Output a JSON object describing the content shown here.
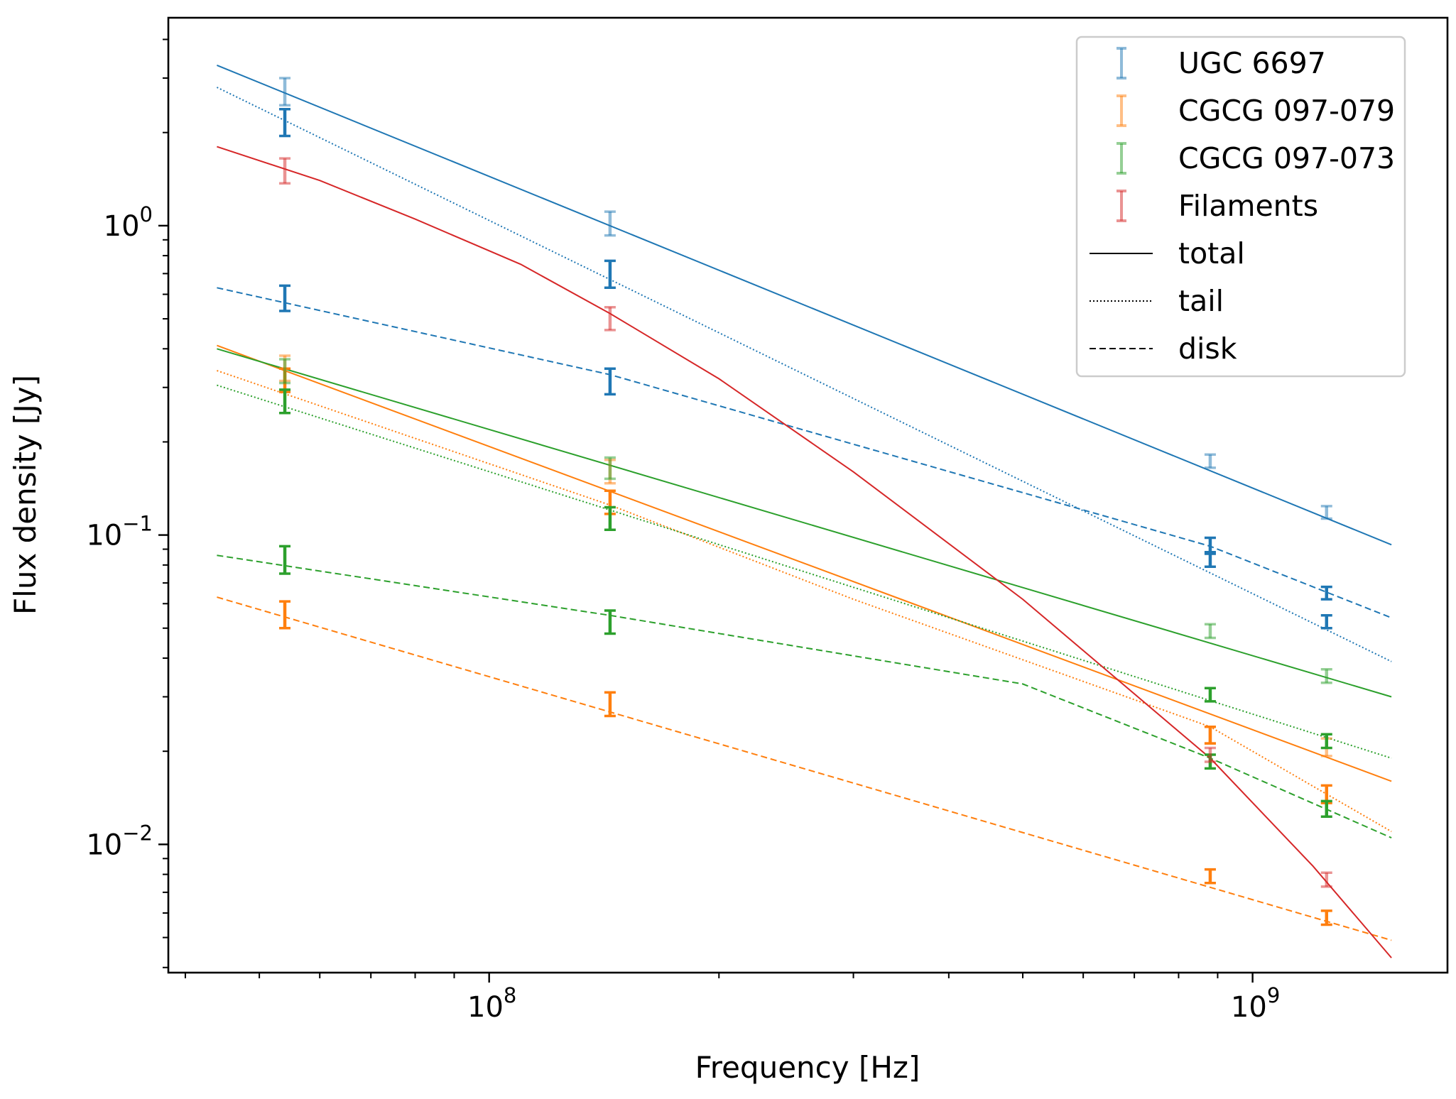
{
  "chart_data": {
    "type": "line",
    "title": "",
    "xlabel": "Frequency [Hz]",
    "ylabel": "Flux density [Jy]",
    "xscale": "log",
    "yscale": "log",
    "xlim": [
      38000000,
      1800000000
    ],
    "ylim": [
      0.00385,
      4.7
    ],
    "x_major_ticks": [
      {
        "value": 100000000,
        "mantissa": "10",
        "exponent": "8"
      },
      {
        "value": 1000000000,
        "mantissa": "10",
        "exponent": "9"
      }
    ],
    "y_major_ticks": [
      {
        "value": 1,
        "mantissa": "10",
        "exponent": "0"
      },
      {
        "value": 0.1,
        "mantissa": "10",
        "exponent": "−1"
      },
      {
        "value": 0.01,
        "mantissa": "10",
        "exponent": "−2"
      }
    ],
    "legend": {
      "position": "upper right",
      "entries": [
        {
          "label": "UGC 6697",
          "kind": "errorbar",
          "color": "#1f77b4"
        },
        {
          "label": "CGCG 097-079",
          "kind": "errorbar",
          "color": "#ff7f0e"
        },
        {
          "label": "CGCG 097-073",
          "kind": "errorbar",
          "color": "#2ca02c"
        },
        {
          "label": "Filaments",
          "kind": "errorbar",
          "color": "#d62728"
        },
        {
          "label": "total",
          "kind": "line",
          "dash": "solid",
          "color": "#000000"
        },
        {
          "label": "tail",
          "kind": "line",
          "dash": "dotted",
          "color": "#000000"
        },
        {
          "label": "disk",
          "kind": "line",
          "dash": "dashed",
          "color": "#000000"
        }
      ]
    },
    "series": [
      {
        "name": "UGC 6697 total",
        "color": "#1f77b4",
        "dash": "solid",
        "x": [
          44000000,
          1520000000
        ],
        "y": [
          3.3,
          0.093
        ]
      },
      {
        "name": "UGC 6697 tail",
        "color": "#1f77b4",
        "dash": "dotted",
        "x": [
          44000000,
          1520000000
        ],
        "y": [
          2.8,
          0.039
        ]
      },
      {
        "name": "UGC 6697 disk",
        "color": "#1f77b4",
        "dash": "dashed",
        "x": [
          44000000,
          144000000,
          880000000,
          1520000000
        ],
        "y": [
          0.63,
          0.33,
          0.092,
          0.054
        ]
      },
      {
        "name": "CGCG 097-079 total",
        "color": "#ff7f0e",
        "dash": "solid",
        "x": [
          44000000,
          1520000000
        ],
        "y": [
          0.41,
          0.016
        ]
      },
      {
        "name": "CGCG 097-079 tail",
        "color": "#ff7f0e",
        "dash": "dotted",
        "x": [
          44000000,
          144000000,
          300000000,
          880000000,
          1520000000
        ],
        "y": [
          0.34,
          0.125,
          0.062,
          0.024,
          0.011
        ]
      },
      {
        "name": "CGCG 097-079 disk",
        "color": "#ff7f0e",
        "dash": "dashed",
        "x": [
          44000000,
          1520000000
        ],
        "y": [
          0.063,
          0.0049
        ]
      },
      {
        "name": "CGCG 097-073 total",
        "color": "#2ca02c",
        "dash": "solid",
        "x": [
          44000000,
          1520000000
        ],
        "y": [
          0.4,
          0.03
        ]
      },
      {
        "name": "CGCG 097-073 tail",
        "color": "#2ca02c",
        "dash": "dotted",
        "x": [
          44000000,
          1520000000
        ],
        "y": [
          0.305,
          0.019
        ]
      },
      {
        "name": "CGCG 097-073 disk",
        "color": "#2ca02c",
        "dash": "dashed",
        "x": [
          44000000,
          144000000,
          500000000,
          880000000,
          1520000000
        ],
        "y": [
          0.086,
          0.055,
          0.033,
          0.019,
          0.0105
        ]
      },
      {
        "name": "Filaments total",
        "color": "#d62728",
        "dash": "solid",
        "x": [
          44000000,
          60000000,
          80000000,
          110000000,
          144000000,
          200000000,
          300000000,
          500000000,
          880000000,
          1200000000,
          1520000000
        ],
        "y": [
          1.8,
          1.4,
          1.05,
          0.75,
          0.52,
          0.32,
          0.16,
          0.062,
          0.019,
          0.0085,
          0.0043
        ]
      }
    ],
    "errorbars": [
      {
        "name": "UGC 6697",
        "color": "#1f77b4",
        "alpha": 0.5,
        "points": [
          {
            "x": 54000000,
            "y": 2.7,
            "lo": 2.45,
            "hi": 3.0
          },
          {
            "x": 144000000,
            "y": 1.02,
            "lo": 0.93,
            "hi": 1.11
          },
          {
            "x": 880000000,
            "y": 0.173,
            "lo": 0.165,
            "hi": 0.182
          },
          {
            "x": 1250000000,
            "y": 0.118,
            "lo": 0.113,
            "hi": 0.124
          }
        ]
      },
      {
        "name": "UGC 6697 tail",
        "color": "#1f77b4",
        "alpha": 1.0,
        "points": [
          {
            "x": 54000000,
            "y": 2.15,
            "lo": 1.95,
            "hi": 2.38
          },
          {
            "x": 144000000,
            "y": 0.7,
            "lo": 0.63,
            "hi": 0.77
          },
          {
            "x": 880000000,
            "y": 0.083,
            "lo": 0.079,
            "hi": 0.087
          },
          {
            "x": 1250000000,
            "y": 0.052,
            "lo": 0.05,
            "hi": 0.055
          }
        ]
      },
      {
        "name": "UGC 6697 disk",
        "color": "#1f77b4",
        "alpha": 1.0,
        "points": [
          {
            "x": 54000000,
            "y": 0.58,
            "lo": 0.53,
            "hi": 0.64
          },
          {
            "x": 144000000,
            "y": 0.31,
            "lo": 0.285,
            "hi": 0.345
          },
          {
            "x": 880000000,
            "y": 0.093,
            "lo": 0.088,
            "hi": 0.098
          },
          {
            "x": 1250000000,
            "y": 0.065,
            "lo": 0.062,
            "hi": 0.068
          }
        ]
      },
      {
        "name": "CGCG 097-079",
        "color": "#ff7f0e",
        "alpha": 0.5,
        "points": [
          {
            "x": 54000000,
            "y": 0.345,
            "lo": 0.315,
            "hi": 0.38
          },
          {
            "x": 144000000,
            "y": 0.16,
            "lo": 0.147,
            "hi": 0.175
          },
          {
            "x": 880000000,
            "y": 0.0225,
            "lo": 0.0212,
            "hi": 0.024
          },
          {
            "x": 1250000000,
            "y": 0.0205,
            "lo": 0.0193,
            "hi": 0.022
          }
        ]
      },
      {
        "name": "CGCG 097-079 tail",
        "color": "#ff7f0e",
        "alpha": 1.0,
        "points": [
          {
            "x": 54000000,
            "y": 0.315,
            "lo": 0.29,
            "hi": 0.345
          },
          {
            "x": 144000000,
            "y": 0.127,
            "lo": 0.117,
            "hi": 0.139
          },
          {
            "x": 880000000,
            "y": 0.0225,
            "lo": 0.0212,
            "hi": 0.024
          },
          {
            "x": 1250000000,
            "y": 0.0145,
            "lo": 0.0136,
            "hi": 0.0155
          }
        ]
      },
      {
        "name": "CGCG 097-079 disk",
        "color": "#ff7f0e",
        "alpha": 1.0,
        "points": [
          {
            "x": 54000000,
            "y": 0.055,
            "lo": 0.05,
            "hi": 0.061
          },
          {
            "x": 144000000,
            "y": 0.028,
            "lo": 0.026,
            "hi": 0.031
          },
          {
            "x": 880000000,
            "y": 0.0079,
            "lo": 0.0075,
            "hi": 0.0083
          },
          {
            "x": 1250000000,
            "y": 0.0058,
            "lo": 0.0055,
            "hi": 0.0061
          }
        ]
      },
      {
        "name": "CGCG 097-073",
        "color": "#2ca02c",
        "alpha": 0.5,
        "points": [
          {
            "x": 54000000,
            "y": 0.34,
            "lo": 0.31,
            "hi": 0.37
          },
          {
            "x": 144000000,
            "y": 0.165,
            "lo": 0.152,
            "hi": 0.178
          },
          {
            "x": 880000000,
            "y": 0.049,
            "lo": 0.0465,
            "hi": 0.0515
          },
          {
            "x": 1250000000,
            "y": 0.035,
            "lo": 0.0333,
            "hi": 0.0368
          }
        ]
      },
      {
        "name": "CGCG 097-073 tail",
        "color": "#2ca02c",
        "alpha": 1.0,
        "points": [
          {
            "x": 54000000,
            "y": 0.27,
            "lo": 0.248,
            "hi": 0.295
          },
          {
            "x": 144000000,
            "y": 0.113,
            "lo": 0.104,
            "hi": 0.123
          },
          {
            "x": 880000000,
            "y": 0.0305,
            "lo": 0.029,
            "hi": 0.032
          },
          {
            "x": 1250000000,
            "y": 0.0215,
            "lo": 0.0205,
            "hi": 0.0227
          }
        ]
      },
      {
        "name": "CGCG 097-073 disk",
        "color": "#2ca02c",
        "alpha": 1.0,
        "points": [
          {
            "x": 54000000,
            "y": 0.083,
            "lo": 0.075,
            "hi": 0.092
          },
          {
            "x": 144000000,
            "y": 0.052,
            "lo": 0.048,
            "hi": 0.057
          },
          {
            "x": 880000000,
            "y": 0.0185,
            "lo": 0.0176,
            "hi": 0.0195
          },
          {
            "x": 1250000000,
            "y": 0.013,
            "lo": 0.0123,
            "hi": 0.0138
          }
        ]
      },
      {
        "name": "Filaments",
        "color": "#d62728",
        "alpha": 0.5,
        "points": [
          {
            "x": 54000000,
            "y": 1.5,
            "lo": 1.37,
            "hi": 1.65
          },
          {
            "x": 144000000,
            "y": 0.5,
            "lo": 0.46,
            "hi": 0.545
          },
          {
            "x": 880000000,
            "y": 0.0195,
            "lo": 0.0185,
            "hi": 0.0205
          },
          {
            "x": 1250000000,
            "y": 0.0077,
            "lo": 0.0073,
            "hi": 0.0081
          }
        ]
      }
    ]
  }
}
